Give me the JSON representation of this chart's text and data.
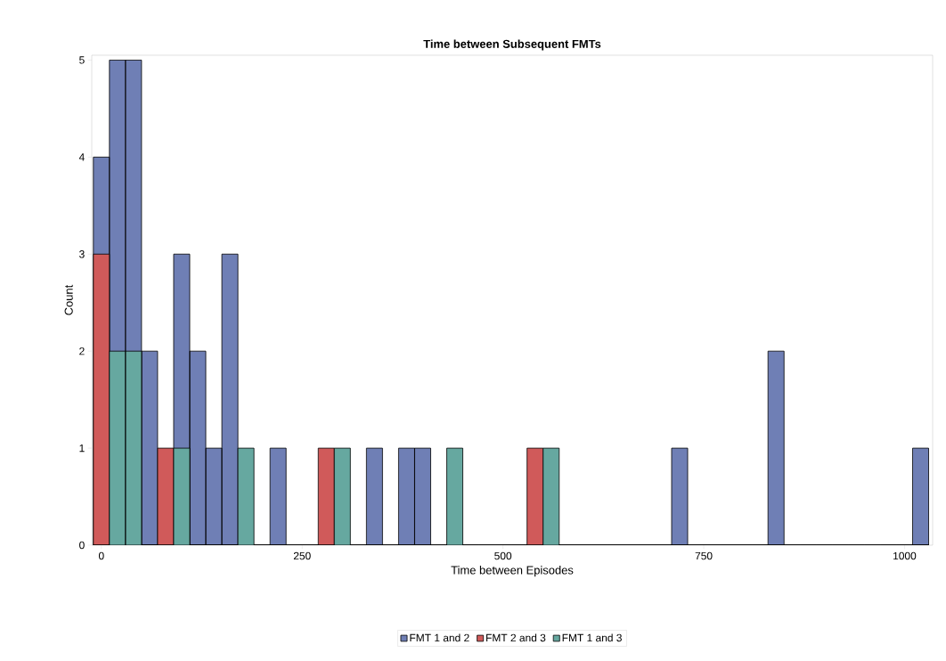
{
  "chart_data": {
    "type": "histogram",
    "title": "Time between Subsequent FMTs",
    "xlabel": "Time between Episodes",
    "ylabel": "Count",
    "bins": [
      -10,
      10,
      30,
      50,
      70,
      90,
      110,
      130,
      150,
      170,
      190,
      210,
      230,
      250,
      270,
      290,
      310,
      330,
      350,
      370,
      390,
      410,
      430,
      450,
      470,
      490,
      510,
      530,
      550,
      570,
      590,
      610,
      630,
      650,
      670,
      690,
      710,
      730,
      750,
      770,
      790,
      810,
      830,
      850,
      870,
      890,
      910,
      930,
      950,
      970,
      990,
      1010,
      1030
    ],
    "series": [
      {
        "name": "FMT 1 and 2",
        "color": "#6f7fb5",
        "values": [
          4,
          5,
          5,
          2,
          0,
          3,
          2,
          1,
          3,
          0,
          0,
          1,
          0,
          0,
          0,
          0,
          0,
          1,
          0,
          1,
          1,
          0,
          0,
          0,
          0,
          0,
          0,
          0,
          0,
          0,
          0,
          0,
          0,
          0,
          0,
          0,
          1,
          0,
          0,
          0,
          0,
          0,
          2,
          0,
          0,
          0,
          0,
          0,
          0,
          0,
          0,
          1
        ]
      },
      {
        "name": "FMT 2 and 3",
        "color": "#d05a5a",
        "values": [
          3,
          0,
          0,
          0,
          1,
          0,
          0,
          0,
          0,
          0,
          0,
          0,
          0,
          0,
          1,
          0,
          0,
          0,
          0,
          0,
          0,
          0,
          0,
          0,
          0,
          0,
          0,
          1,
          0,
          0,
          0,
          0,
          0,
          0,
          0,
          0,
          0,
          0,
          0,
          0,
          0,
          0,
          0,
          0,
          0,
          0,
          0,
          0,
          0,
          0,
          0,
          0
        ]
      },
      {
        "name": "FMT 1 and 3",
        "color": "#66a8a0",
        "values": [
          0,
          2,
          2,
          0,
          0,
          1,
          0,
          0,
          0,
          1,
          0,
          0,
          0,
          0,
          0,
          1,
          0,
          0,
          0,
          0,
          0,
          0,
          1,
          0,
          0,
          0,
          0,
          0,
          1,
          0,
          0,
          0,
          0,
          0,
          0,
          0,
          0,
          0,
          0,
          0,
          0,
          0,
          0,
          0,
          0,
          0,
          0,
          0,
          0,
          0,
          0,
          0
        ]
      }
    ],
    "xlim": [
      -12,
      1035
    ],
    "ylim": [
      0,
      5.05
    ],
    "xticks": [
      0,
      250,
      500,
      750,
      1000
    ],
    "yticks": [
      0,
      1,
      2,
      3,
      4,
      5
    ],
    "legend": "bottom"
  }
}
